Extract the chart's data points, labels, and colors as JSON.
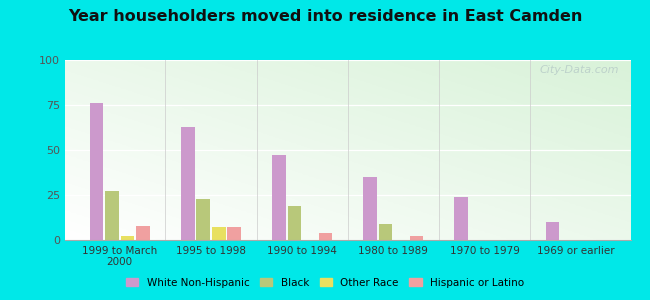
{
  "title": "Year householders moved into residence in East Camden",
  "categories": [
    "1999 to March\n2000",
    "1995 to 1998",
    "1990 to 1994",
    "1980 to 1989",
    "1970 to 1979",
    "1969 or earlier"
  ],
  "series": {
    "White Non-Hispanic": [
      76,
      63,
      47,
      35,
      24,
      10
    ],
    "Black": [
      27,
      23,
      19,
      9,
      0,
      0
    ],
    "Other Race": [
      2,
      7,
      0,
      0,
      0,
      0
    ],
    "Hispanic or Latino": [
      8,
      7,
      4,
      2,
      0,
      0
    ]
  },
  "colors": {
    "White Non-Hispanic": "#cc99cc",
    "Black": "#b8c87a",
    "Other Race": "#e8e060",
    "Hispanic or Latino": "#f0a0a0"
  },
  "ylim": [
    0,
    100
  ],
  "yticks": [
    0,
    25,
    50,
    75,
    100
  ],
  "background_outer": "#00e8e8",
  "watermark": "City-Data.com"
}
